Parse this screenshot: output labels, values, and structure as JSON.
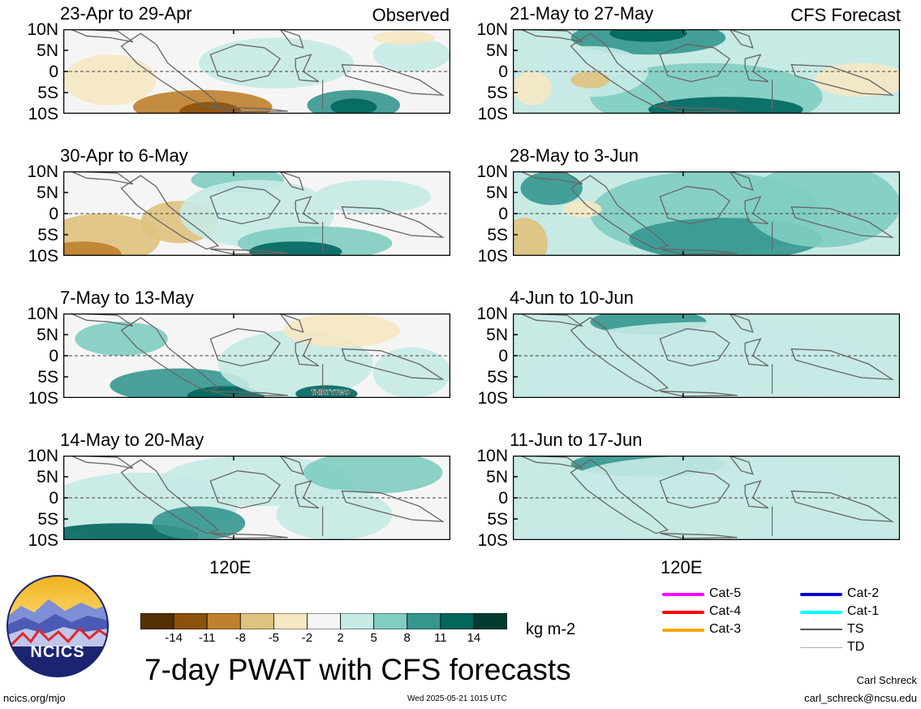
{
  "header": {
    "left_tag": "Observed",
    "right_tag": "CFS Forecast"
  },
  "y_axis_labels": [
    "10N",
    "5N",
    "0",
    "5S",
    "10S"
  ],
  "x_axis_label": "120E",
  "panels": [
    {
      "title": "23-Apr to 29-Apr",
      "column": "observed"
    },
    {
      "title": "30-Apr to 6-May",
      "column": "observed"
    },
    {
      "title": "7-May to 13-May",
      "column": "observed",
      "annotation": "THIRTYTWO"
    },
    {
      "title": "14-May to 20-May",
      "column": "observed"
    },
    {
      "title": "21-May to 27-May",
      "column": "forecast"
    },
    {
      "title": "28-May to 3-Jun",
      "column": "forecast"
    },
    {
      "title": "4-Jun to 10-Jun",
      "column": "forecast"
    },
    {
      "title": "11-Jun to 17-Jun",
      "column": "forecast"
    }
  ],
  "colorbar": {
    "ticks": [
      "-14",
      "-11",
      "-8",
      "-5",
      "-2",
      "2",
      "5",
      "8",
      "11",
      "14"
    ],
    "colors": [
      "#543005",
      "#8c510a",
      "#bf812d",
      "#dfc27d",
      "#f6e8c3",
      "#f5f5f5",
      "#c7eae5",
      "#80cdc1",
      "#35978f",
      "#01665e",
      "#003c30"
    ],
    "unit": "kg m-2"
  },
  "storm_legend": [
    {
      "label": "Cat-5",
      "color": "#ff00ff"
    },
    {
      "label": "Cat-4",
      "color": "#ff0000"
    },
    {
      "label": "Cat-3",
      "color": "#ffa500"
    },
    {
      "label": "Cat-2",
      "color": "#0000cd"
    },
    {
      "label": "Cat-1",
      "color": "#00ffff"
    },
    {
      "label": "TS",
      "color": "#555555"
    },
    {
      "label": "TD",
      "color": "#aaaaaa"
    }
  ],
  "footer": {
    "logo_text": "NCICS",
    "title": "7-day PWAT with CFS forecasts",
    "url": "ncics.org/mjo",
    "timestamp": "Wed 2025-05-21 1015 UTC",
    "author": "Carl Schreck",
    "email": "carl_schreck@ncsu.edu"
  }
}
